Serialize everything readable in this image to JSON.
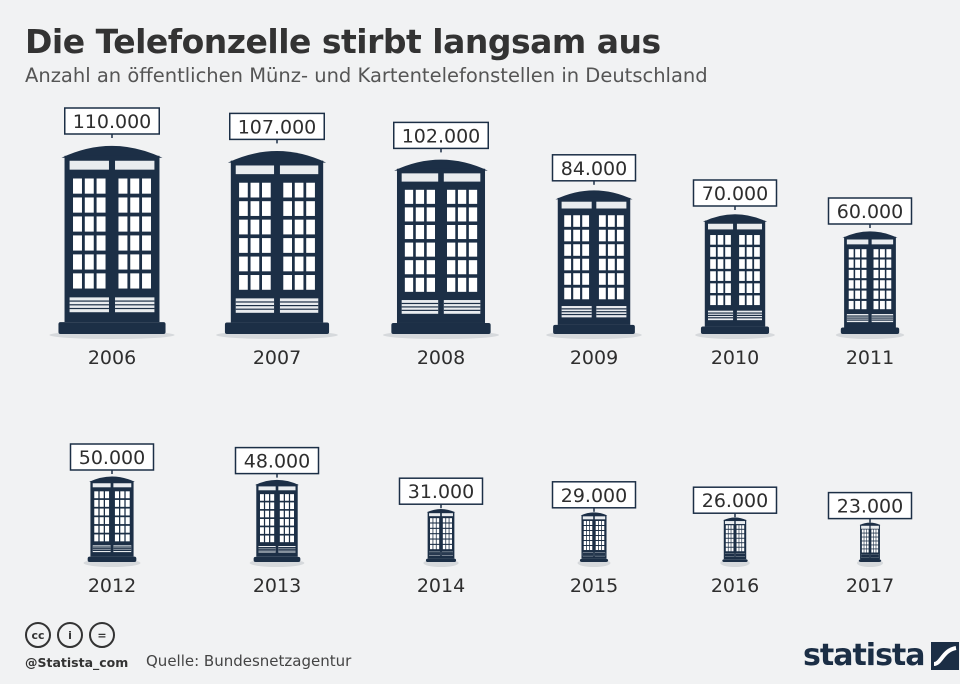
{
  "title": "Die Telefonzelle stirbt langsam aus",
  "subtitle": "Anzahl an öffentlichen Münz- und Kartentelefonstellen in Deutschland",
  "footer": {
    "license_icons": [
      "cc-icon",
      "by-icon",
      "nd-icon"
    ],
    "license_glyphs": [
      "cc",
      "i",
      "="
    ],
    "handle": "@Statista_com",
    "source": "Quelle: Bundesnetzagentur",
    "brand": "statista"
  },
  "colors": {
    "booth": "#1c2f46",
    "background": "#f1f2f3",
    "label_border": "#1c2f46",
    "text": "#2e2e2e"
  },
  "chart_data": {
    "type": "bar",
    "title": "Die Telefonzelle stirbt langsam aus",
    "subtitle": "Anzahl an öffentlichen Münz- und Kartentelefonstellen in Deutschland",
    "categories": [
      "2006",
      "2007",
      "2008",
      "2009",
      "2010",
      "2011",
      "2012",
      "2013",
      "2014",
      "2015",
      "2016",
      "2017"
    ],
    "values": [
      110000,
      107000,
      102000,
      84000,
      70000,
      60000,
      50000,
      48000,
      31000,
      29000,
      26000,
      23000
    ],
    "value_labels": [
      "110.000",
      "107.000",
      "102.000",
      "84.000",
      "70.000",
      "60.000",
      "50.000",
      "48.000",
      "31.000",
      "29.000",
      "26.000",
      "23.000"
    ],
    "mark": "telephone-booth pictograms scaled by value",
    "grid": false,
    "legend": "none"
  }
}
